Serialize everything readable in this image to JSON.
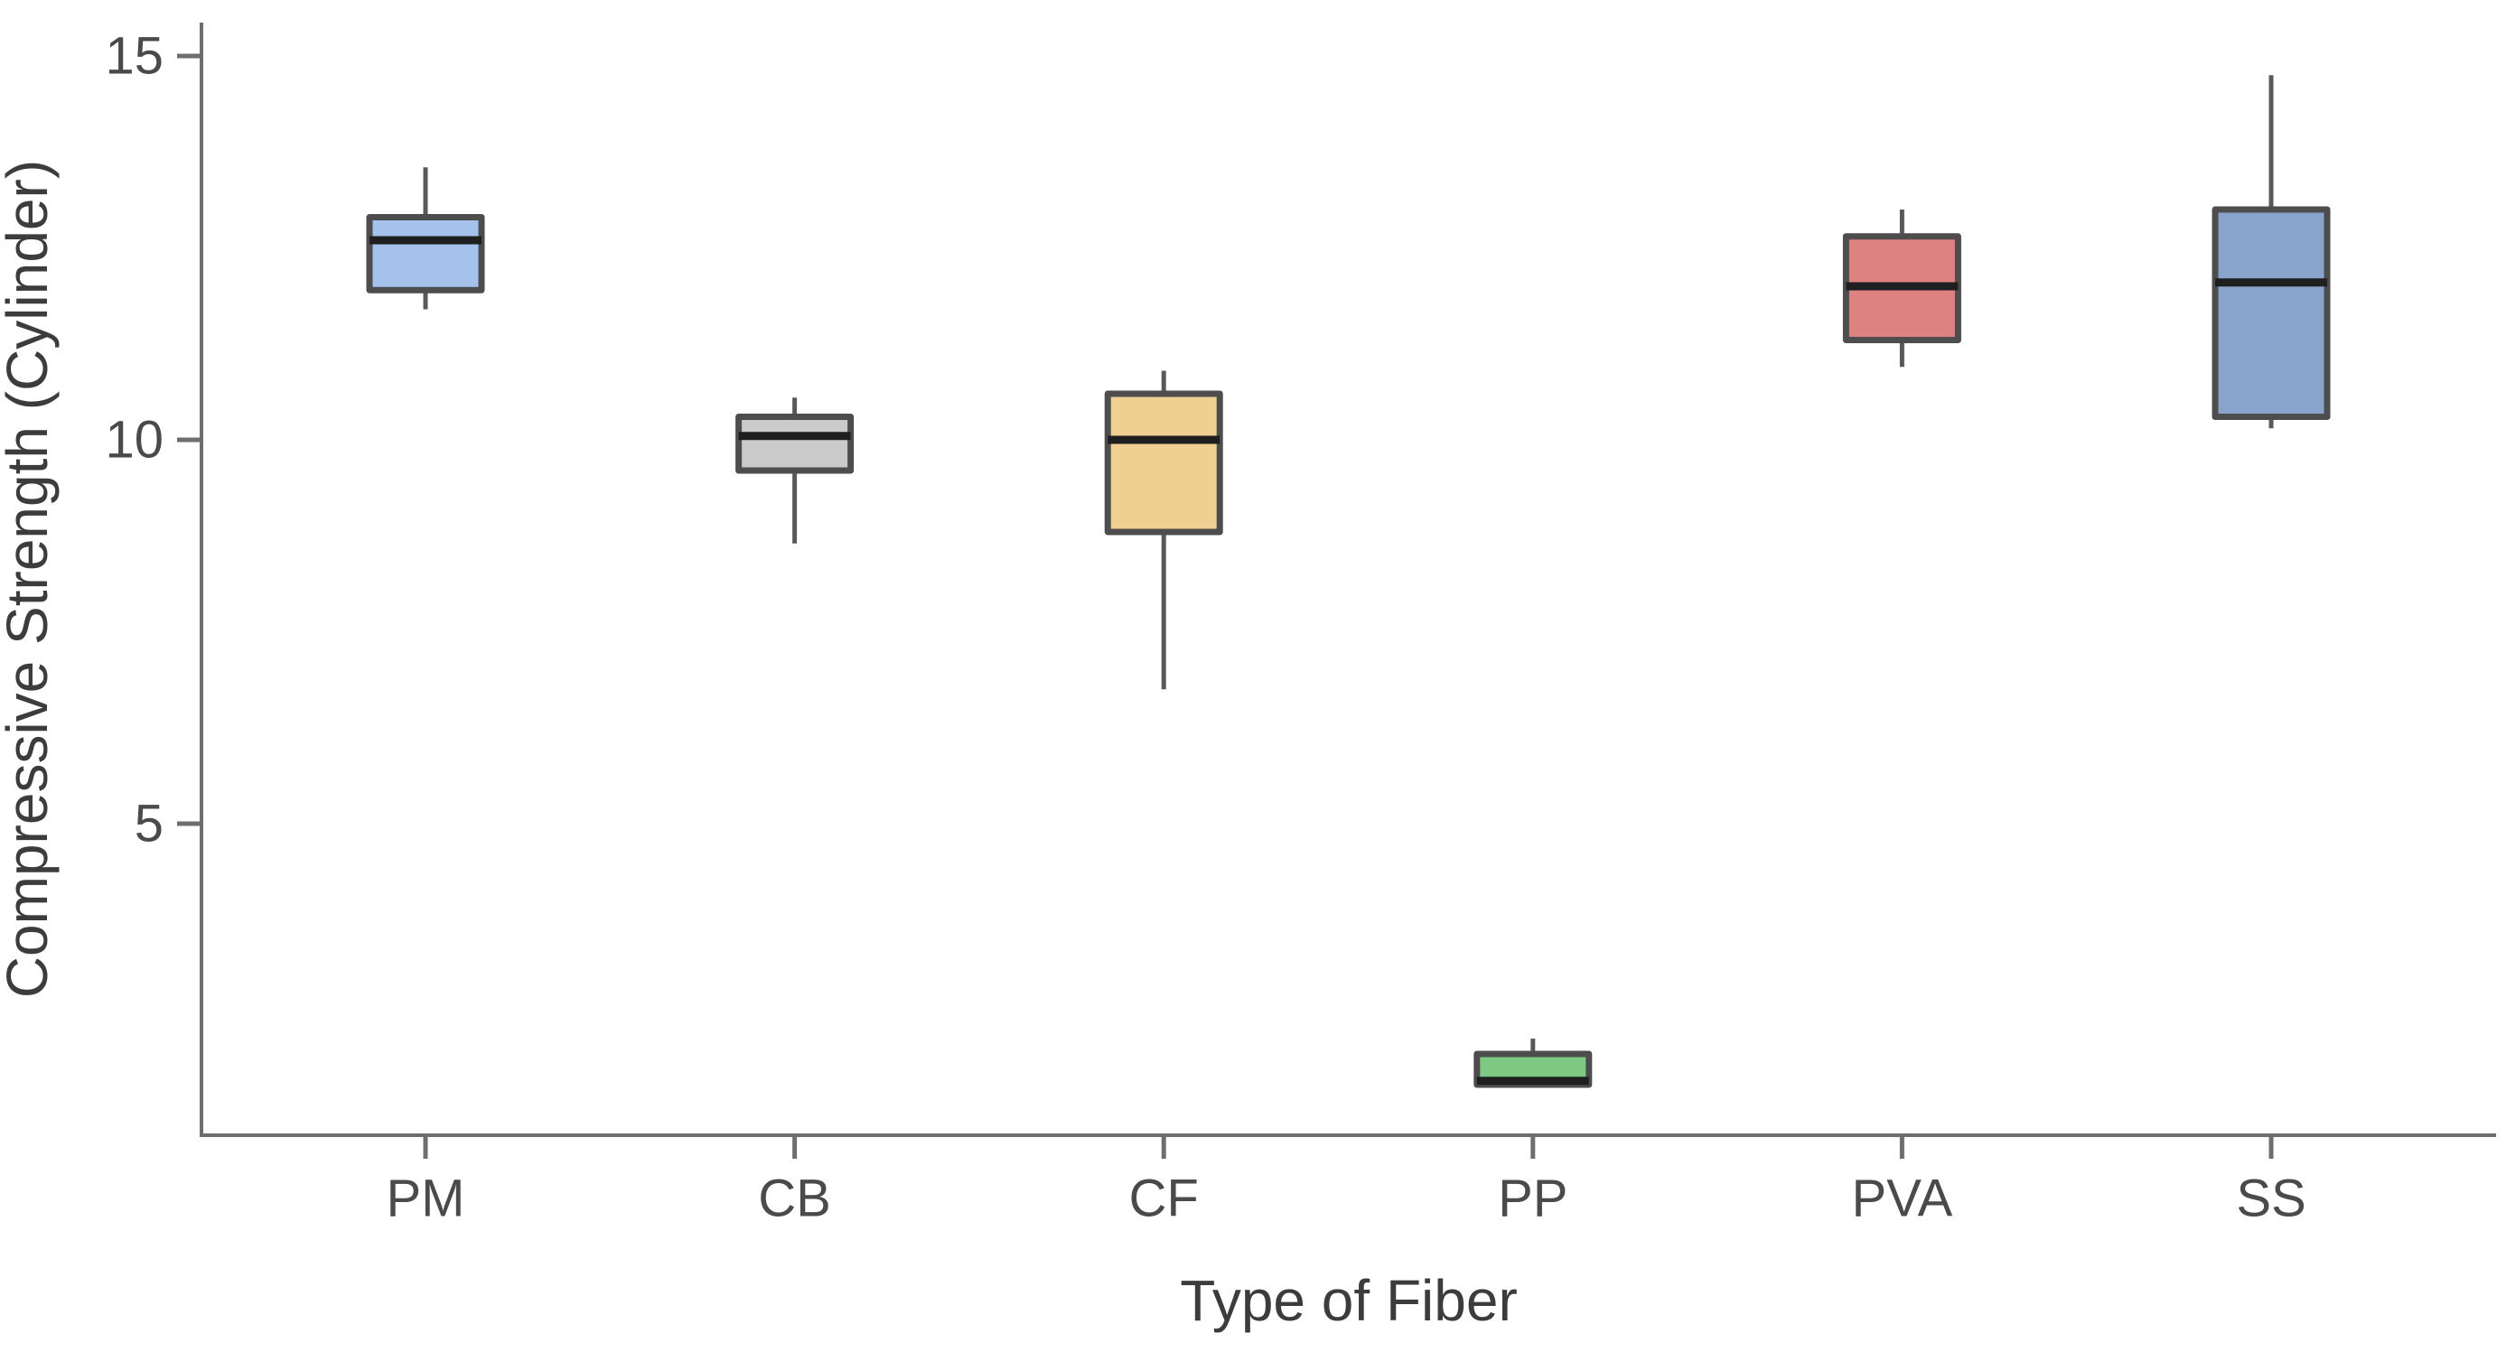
{
  "figure": {
    "background": "#ffffff"
  },
  "chart_data": {
    "type": "boxplot",
    "title": "",
    "xlabel": "Type of Fiber",
    "ylabel": "Compressive Strength (Cylinder)",
    "categories": [
      "PM",
      "CB",
      "CF",
      "PP",
      "PVA",
      "SS"
    ],
    "y_axis": {
      "ticks": [
        5,
        10,
        15
      ],
      "range": [
        0.95,
        15.45
      ],
      "grid": false
    },
    "legend_position": "none",
    "series": [
      {
        "category": "PM",
        "min": 11.7,
        "q1": 11.95,
        "median": 12.6,
        "q3": 12.9,
        "max": 13.55,
        "fill": "#a4c2ec"
      },
      {
        "category": "CB",
        "min": 8.65,
        "q1": 9.6,
        "median": 10.05,
        "q3": 10.3,
        "max": 10.55,
        "fill": "#cacaca"
      },
      {
        "category": "CF",
        "min": 6.75,
        "q1": 8.8,
        "median": 10.0,
        "q3": 10.6,
        "max": 10.9,
        "fill": "#f0d092"
      },
      {
        "category": "PP",
        "min": 1.6,
        "q1": 1.6,
        "median": 1.65,
        "q3": 2.0,
        "max": 2.2,
        "fill": "#7ec983"
      },
      {
        "category": "PVA",
        "min": 10.95,
        "q1": 11.3,
        "median": 12.0,
        "q3": 12.65,
        "max": 13.0,
        "fill": "#dd8181"
      },
      {
        "category": "SS",
        "min": 10.15,
        "q1": 10.3,
        "median": 12.05,
        "q3": 13.0,
        "max": 14.75,
        "fill": "#88a4cb"
      }
    ],
    "style_colors": {
      "axis": "#6e6e6e",
      "box_border": "#4d4d4d",
      "median_line": "#1f1f1f",
      "whisker": "#595959",
      "tick_text": "#4a4a4a",
      "title_text": "#3c3c3c"
    }
  }
}
